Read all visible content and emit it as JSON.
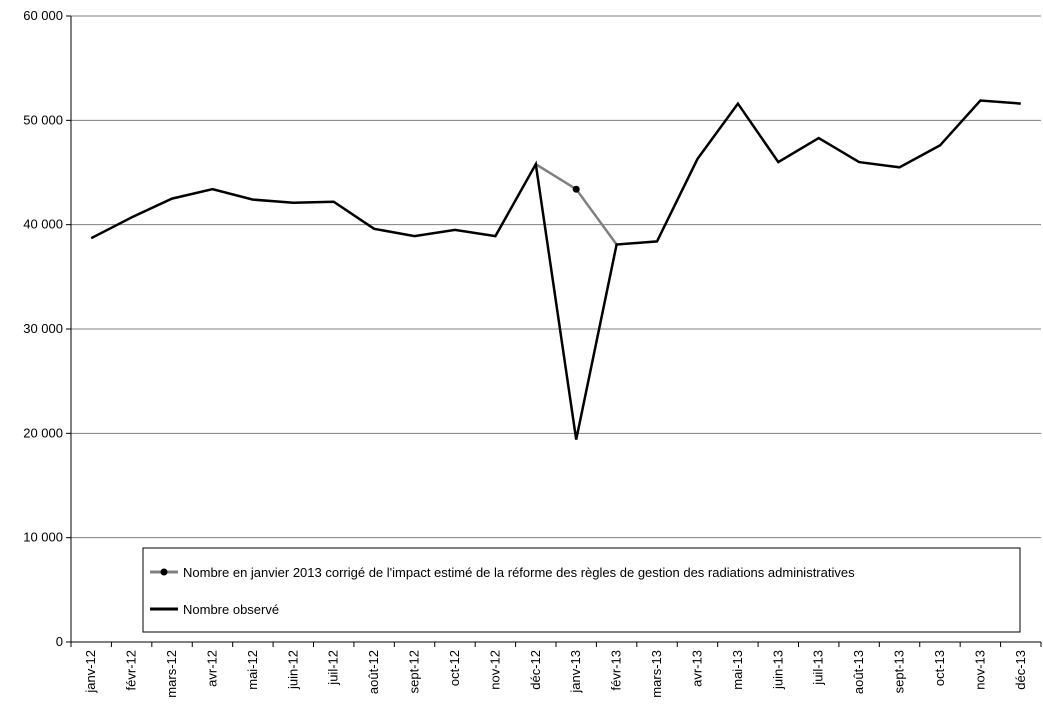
{
  "chart_data": {
    "type": "line",
    "categories": [
      "janv-12",
      "févr-12",
      "mars-12",
      "avr-12",
      "mai-12",
      "juin-12",
      "juil-12",
      "août-12",
      "sept-12",
      "oct-12",
      "nov-12",
      "déc-12",
      "janv-13",
      "févr-13",
      "mars-13",
      "avr-13",
      "mai-13",
      "juin-13",
      "juil-13",
      "août-13",
      "sept-13",
      "oct-13",
      "nov-13",
      "déc-13"
    ],
    "ylim": [
      0,
      60000
    ],
    "yticks": [
      0,
      10000,
      20000,
      30000,
      40000,
      50000,
      60000
    ],
    "ytick_labels": [
      "0",
      "10 000",
      "20 000",
      "30 000",
      "40 000",
      "50 000",
      "60 000"
    ],
    "grid": "horizontal",
    "legend_position": "bottom-center",
    "series": [
      {
        "name": "Nombre observé",
        "color": "#000000",
        "values": [
          38700,
          40700,
          42500,
          43400,
          42400,
          42100,
          42200,
          39600,
          38900,
          39500,
          38900,
          45800,
          19400,
          38100,
          38400,
          46300,
          51600,
          46000,
          48300,
          46000,
          45500,
          47600,
          51900,
          51600
        ]
      },
      {
        "name": "Nombre en janvier 2013 corrigé de l'impact estimé de la réforme des règles de gestion des radiations administratives",
        "color": "#808080",
        "marker_color": "#000000",
        "marker_index": 12,
        "values": [
          null,
          null,
          null,
          null,
          null,
          null,
          null,
          null,
          null,
          null,
          null,
          45800,
          43400,
          38100,
          null,
          null,
          null,
          null,
          null,
          null,
          null,
          null,
          null,
          null
        ]
      }
    ],
    "legend_order": [
      1,
      0
    ]
  }
}
